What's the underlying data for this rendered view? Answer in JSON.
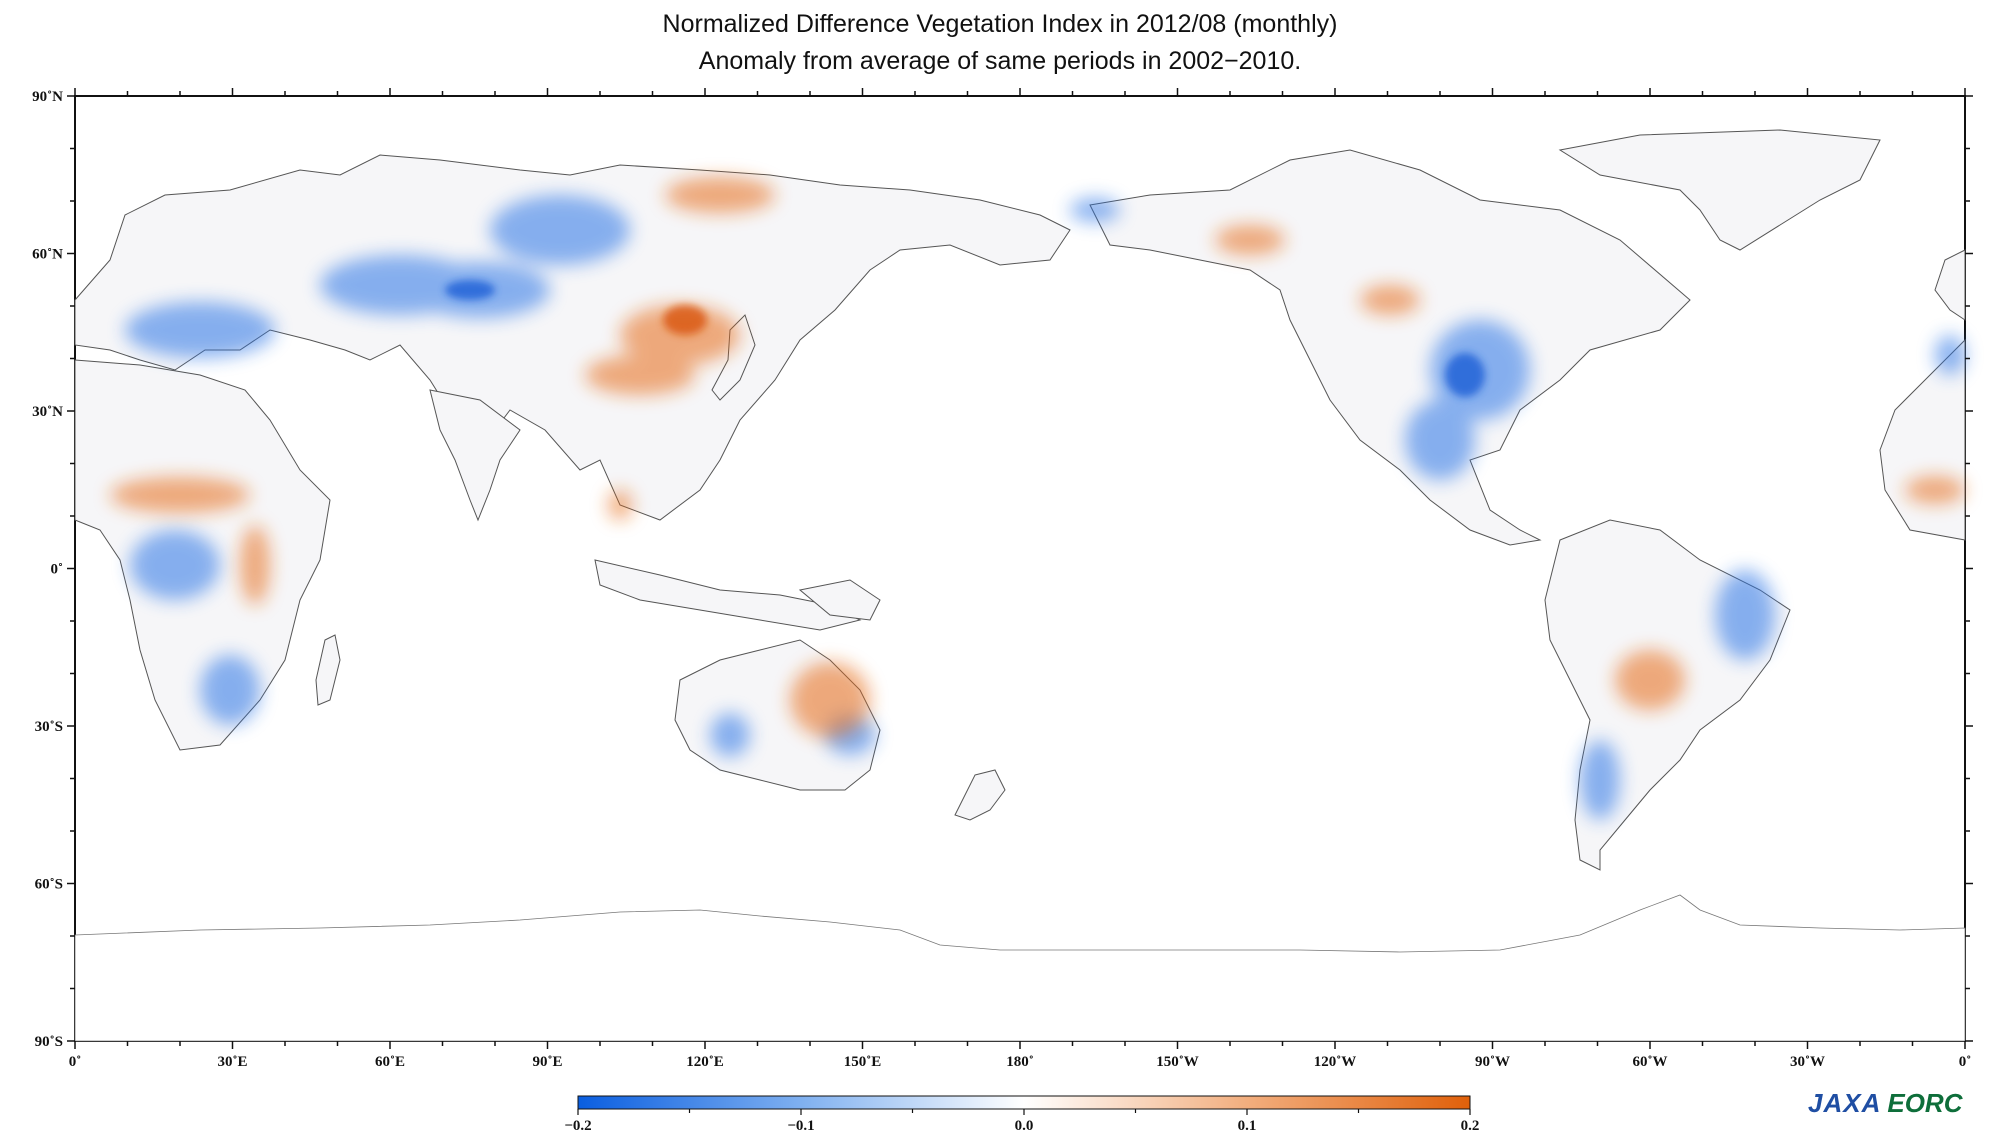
{
  "title": {
    "line1": "Normalized Difference Vegetation Index in 2012/08 (monthly)",
    "line2": "Anomaly from average of same periods in 2002−2010."
  },
  "map": {
    "projection": "equirectangular",
    "center_longitude": 180,
    "lon_range": [
      0,
      360
    ],
    "lat_range": [
      -90,
      90
    ],
    "y_ticks": [
      "90˚N",
      "60˚N",
      "30˚N",
      "0˚",
      "30˚S",
      "60˚S",
      "90˚S"
    ],
    "x_ticks": [
      "0˚",
      "30˚E",
      "60˚E",
      "90˚E",
      "120˚E",
      "150˚E",
      "180˚",
      "150˚W",
      "120˚W",
      "90˚W",
      "60˚W",
      "30˚W",
      "0˚"
    ]
  },
  "colorbar": {
    "min": -0.2,
    "max": 0.2,
    "colors": [
      "#0a5ee0",
      "#ffffff",
      "#e0600a"
    ],
    "tick_labels": [
      "−0.2",
      "−0.1",
      "0.0",
      "0.1",
      "0.2"
    ]
  },
  "logo": {
    "jaxa": "JAXA",
    "eorc": "EORC"
  }
}
